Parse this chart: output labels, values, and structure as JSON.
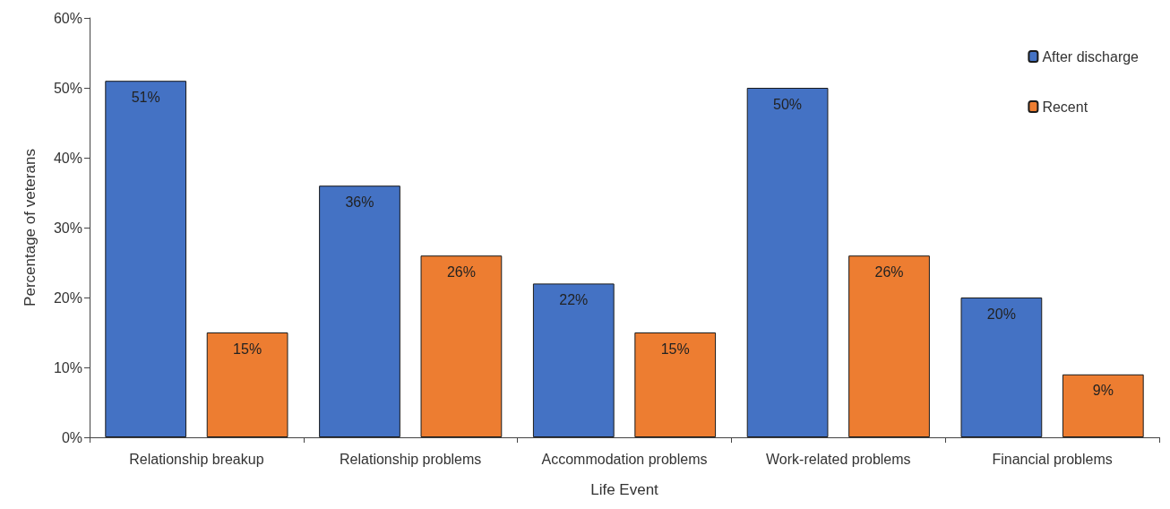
{
  "chart_data": {
    "type": "bar",
    "xlabel": "Life Event",
    "ylabel": "Percentage of veterans",
    "categories": [
      "Relationship breakup",
      "Relationship problems",
      "Accommodation problems",
      "Work-related problems",
      "Financial problems"
    ],
    "series": [
      {
        "name": "After discharge",
        "color": "#4472c4",
        "values": [
          51,
          36,
          22,
          50,
          20
        ],
        "value_labels": [
          "51%",
          "36%",
          "22%",
          "50%",
          "20%"
        ]
      },
      {
        "name": "Recent",
        "color": "#ed7d31",
        "values": [
          15,
          26,
          15,
          26,
          9
        ],
        "value_labels": [
          "15%",
          "26%",
          "15%",
          "26%",
          "9%"
        ]
      }
    ],
    "ylim": [
      0,
      60
    ],
    "yticks": [
      {
        "value": 0,
        "label": "0%"
      },
      {
        "value": 10,
        "label": "10%"
      },
      {
        "value": 20,
        "label": "20%"
      },
      {
        "value": 30,
        "label": "30%"
      },
      {
        "value": 40,
        "label": "40%"
      },
      {
        "value": 50,
        "label": "50%"
      },
      {
        "value": 60,
        "label": "60%"
      }
    ],
    "grid": false,
    "legend": "top right"
  }
}
